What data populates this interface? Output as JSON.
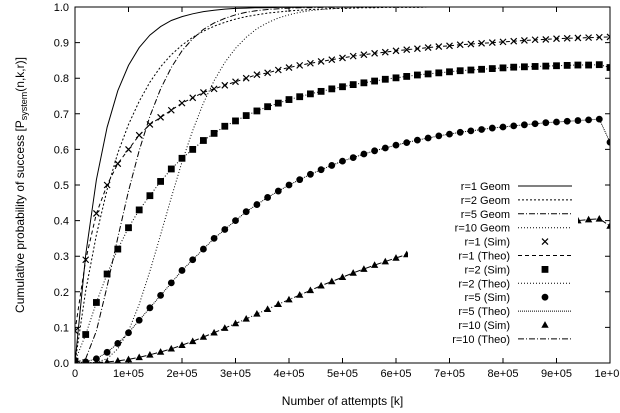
{
  "chart_data": {
    "type": "line",
    "xlabel": "Number of attempts [k]",
    "ylabel": {
      "main": "Cumulative probability of success [P",
      "sub": "system",
      "tail": "(n,k,r)]"
    },
    "xlim": [
      0,
      1000000
    ],
    "ylim": [
      0,
      1
    ],
    "xticks": [
      0,
      100000,
      200000,
      300000,
      400000,
      500000,
      600000,
      700000,
      800000,
      900000,
      1000000
    ],
    "xtick_labels": [
      "0",
      "1e+05",
      "2e+05",
      "3e+05",
      "4e+05",
      "5e+05",
      "6e+05",
      "7e+05",
      "8e+05",
      "9e+05",
      "1e+06"
    ],
    "yticks": [
      0,
      0.1,
      0.2,
      0.3,
      0.4,
      0.5,
      0.6,
      0.7,
      0.8,
      0.9,
      1.0
    ],
    "ytick_labels": [
      "0.0",
      "0.1",
      "0.2",
      "0.3",
      "0.4",
      "0.5",
      "0.6",
      "0.7",
      "0.8",
      "0.9",
      "1.0"
    ],
    "grid": false,
    "legend_position": "right",
    "x": [
      0,
      20000,
      40000,
      60000,
      80000,
      100000,
      120000,
      140000,
      160000,
      180000,
      200000,
      220000,
      240000,
      260000,
      280000,
      300000,
      320000,
      340000,
      360000,
      380000,
      400000,
      420000,
      440000,
      460000,
      480000,
      500000,
      520000,
      540000,
      560000,
      580000,
      600000,
      620000,
      640000,
      660000,
      680000,
      700000,
      720000,
      740000,
      760000,
      780000,
      800000,
      820000,
      840000,
      860000,
      880000,
      900000,
      920000,
      940000,
      960000,
      980000,
      1000000
    ],
    "series": [
      {
        "name": "r=1 Geom",
        "dash": "",
        "marker": "none",
        "values": [
          0,
          0.304,
          0.515,
          0.662,
          0.765,
          0.836,
          0.886,
          0.921,
          0.945,
          0.962,
          0.973,
          0.981,
          0.987,
          0.991,
          0.994,
          0.996,
          0.997,
          0.998,
          0.998,
          0.999,
          0.999,
          0.999,
          1,
          1,
          1,
          1,
          1,
          1,
          1,
          1,
          1,
          1,
          1,
          1,
          1,
          1,
          1,
          1,
          1,
          1,
          1,
          1,
          1,
          1,
          1,
          1,
          1,
          1,
          1,
          1,
          1
        ]
      },
      {
        "name": "r=2 Geom",
        "dash": "2,2",
        "marker": "none",
        "values": [
          0,
          0.203,
          0.36,
          0.487,
          0.59,
          0.67,
          0.735,
          0.789,
          0.832,
          0.866,
          0.893,
          0.915,
          0.932,
          0.946,
          0.957,
          0.966,
          0.973,
          0.978,
          0.983,
          0.986,
          0.989,
          0.991,
          0.993,
          0.994,
          0.996,
          0.996,
          0.997,
          0.998,
          0.998,
          0.999,
          0.999,
          0.999,
          0.999,
          1,
          1,
          1,
          1,
          1,
          1,
          1,
          1,
          1,
          1,
          1,
          1,
          1,
          1,
          1,
          1,
          1,
          1
        ]
      },
      {
        "name": "r=5 Geom",
        "dash": "6,2,1,2",
        "marker": "none",
        "values": [
          0,
          0.012,
          0.09,
          0.215,
          0.352,
          0.483,
          0.597,
          0.693,
          0.77,
          0.83,
          0.877,
          0.911,
          0.937,
          0.955,
          0.968,
          0.978,
          0.985,
          0.99,
          0.993,
          0.995,
          0.997,
          0.998,
          0.998,
          0.999,
          0.999,
          1,
          1,
          1,
          1,
          1,
          1,
          1,
          1,
          1,
          1,
          1,
          1,
          1,
          1,
          1,
          1,
          1,
          1,
          1,
          1,
          1,
          1,
          1,
          1,
          1,
          1
        ]
      },
      {
        "name": "r=10 Geom",
        "dash": "1,2",
        "marker": "none",
        "values": [
          0,
          0,
          0.002,
          0.012,
          0.04,
          0.09,
          0.165,
          0.258,
          0.36,
          0.465,
          0.565,
          0.653,
          0.73,
          0.793,
          0.844,
          0.884,
          0.915,
          0.939,
          0.956,
          0.969,
          0.978,
          0.985,
          0.99,
          0.993,
          0.995,
          0.997,
          0.998,
          0.999,
          0.999,
          1,
          1,
          1,
          1,
          1,
          1,
          1,
          1,
          1,
          1,
          1,
          1,
          1,
          1,
          1,
          1,
          1,
          1,
          1,
          1,
          1,
          1
        ]
      },
      {
        "name": "r=1 (Sim)",
        "dash": "none",
        "marker": "x",
        "values": [
          0.09,
          0.29,
          0.42,
          0.5,
          0.56,
          0.6,
          0.64,
          0.67,
          0.69,
          0.71,
          0.73,
          0.745,
          0.76,
          0.77,
          0.78,
          0.79,
          0.8,
          0.81,
          0.815,
          0.823,
          0.83,
          0.836,
          0.842,
          0.847,
          0.852,
          0.857,
          0.862,
          0.866,
          0.87,
          0.873,
          0.877,
          0.88,
          0.883,
          0.886,
          0.889,
          0.891,
          0.894,
          0.896,
          0.898,
          0.9,
          0.902,
          0.904,
          0.906,
          0.908,
          0.909,
          0.911,
          0.912,
          0.913,
          0.914,
          0.915,
          0.916
        ]
      },
      {
        "name": "r=1 (Theo)",
        "dash": "4,3",
        "marker": "none",
        "values": [
          0.09,
          0.29,
          0.42,
          0.5,
          0.56,
          0.6,
          0.64,
          0.67,
          0.69,
          0.71,
          0.73,
          0.745,
          0.76,
          0.77,
          0.78,
          0.79,
          0.8,
          0.81,
          0.815,
          0.823,
          0.83,
          0.836,
          0.842,
          0.847,
          0.852,
          0.857,
          0.862,
          0.866,
          0.87,
          0.873,
          0.877,
          0.88,
          0.883,
          0.886,
          0.889,
          0.891,
          0.894,
          0.896,
          0.898,
          0.9,
          0.902,
          0.904,
          0.906,
          0.908,
          0.909,
          0.911,
          0.912,
          0.913,
          0.914,
          0.915,
          0.916
        ]
      },
      {
        "name": "r=2 (Sim)",
        "dash": "none",
        "marker": "square",
        "values": [
          0.005,
          0.08,
          0.17,
          0.25,
          0.32,
          0.38,
          0.43,
          0.47,
          0.51,
          0.545,
          0.575,
          0.6,
          0.625,
          0.645,
          0.665,
          0.68,
          0.695,
          0.708,
          0.72,
          0.73,
          0.74,
          0.748,
          0.756,
          0.763,
          0.77,
          0.776,
          0.782,
          0.787,
          0.792,
          0.797,
          0.801,
          0.805,
          0.809,
          0.812,
          0.815,
          0.818,
          0.821,
          0.823,
          0.825,
          0.827,
          0.829,
          0.831,
          0.832,
          0.833,
          0.834,
          0.835,
          0.836,
          0.837,
          0.837,
          0.838,
          0.83
        ]
      },
      {
        "name": "r=2 (Theo)",
        "dash": "1,2",
        "marker": "none",
        "values": [
          0.005,
          0.08,
          0.17,
          0.25,
          0.32,
          0.38,
          0.43,
          0.47,
          0.51,
          0.545,
          0.575,
          0.6,
          0.625,
          0.645,
          0.665,
          0.68,
          0.695,
          0.708,
          0.72,
          0.73,
          0.74,
          0.748,
          0.756,
          0.763,
          0.77,
          0.776,
          0.782,
          0.787,
          0.792,
          0.797,
          0.801,
          0.805,
          0.809,
          0.812,
          0.815,
          0.818,
          0.821,
          0.823,
          0.825,
          0.827,
          0.829,
          0.831,
          0.832,
          0.833,
          0.834,
          0.835,
          0.836,
          0.837,
          0.837,
          0.838,
          0.83
        ]
      },
      {
        "name": "r=5 (Sim)",
        "dash": "none",
        "marker": "circle",
        "values": [
          0,
          0.003,
          0.012,
          0.03,
          0.055,
          0.085,
          0.12,
          0.155,
          0.19,
          0.225,
          0.26,
          0.29,
          0.32,
          0.35,
          0.375,
          0.4,
          0.425,
          0.445,
          0.465,
          0.483,
          0.5,
          0.515,
          0.53,
          0.543,
          0.555,
          0.567,
          0.577,
          0.587,
          0.596,
          0.604,
          0.612,
          0.619,
          0.626,
          0.632,
          0.638,
          0.643,
          0.648,
          0.652,
          0.656,
          0.66,
          0.663,
          0.666,
          0.669,
          0.672,
          0.675,
          0.677,
          0.679,
          0.681,
          0.683,
          0.685,
          0.62
        ]
      },
      {
        "name": "r=5 (Theo)",
        "dash": "1,1",
        "marker": "none",
        "values": [
          0,
          0.003,
          0.012,
          0.03,
          0.055,
          0.085,
          0.12,
          0.155,
          0.19,
          0.225,
          0.26,
          0.29,
          0.32,
          0.35,
          0.375,
          0.4,
          0.425,
          0.445,
          0.465,
          0.483,
          0.5,
          0.515,
          0.53,
          0.543,
          0.555,
          0.567,
          0.577,
          0.587,
          0.596,
          0.604,
          0.612,
          0.619,
          0.626,
          0.632,
          0.638,
          0.643,
          0.648,
          0.652,
          0.656,
          0.66,
          0.663,
          0.666,
          0.669,
          0.672,
          0.675,
          0.677,
          0.679,
          0.681,
          0.683,
          0.685,
          0.62
        ]
      },
      {
        "name": "r=10 (Sim)",
        "dash": "none",
        "marker": "triangle",
        "values": [
          0,
          0,
          0.001,
          0.003,
          0.006,
          0.01,
          0.016,
          0.023,
          0.031,
          0.04,
          0.05,
          0.061,
          0.073,
          0.085,
          0.098,
          0.111,
          0.124,
          0.138,
          0.151,
          0.165,
          0.178,
          0.191,
          0.204,
          0.217,
          0.229,
          0.241,
          0.253,
          0.264,
          0.275,
          0.285,
          0.295,
          0.305,
          0.314,
          0.322,
          0.331,
          0.338,
          0.346,
          0.353,
          0.359,
          0.365,
          0.371,
          0.376,
          0.381,
          0.386,
          0.39,
          0.394,
          0.397,
          0.4,
          0.403,
          0.405,
          0.385
        ]
      },
      {
        "name": "r=10 (Theo)",
        "dash": "6,2,1,2",
        "marker": "none",
        "values": [
          0,
          0,
          0.001,
          0.003,
          0.006,
          0.01,
          0.016,
          0.023,
          0.031,
          0.04,
          0.05,
          0.061,
          0.073,
          0.085,
          0.098,
          0.111,
          0.124,
          0.138,
          0.151,
          0.165,
          0.178,
          0.191,
          0.204,
          0.217,
          0.229,
          0.241,
          0.253,
          0.264,
          0.275,
          0.285,
          0.295,
          0.305,
          0.314,
          0.322,
          0.331,
          0.338,
          0.346,
          0.353,
          0.359,
          0.365,
          0.371,
          0.376,
          0.381,
          0.386,
          0.39,
          0.394,
          0.397,
          0.4,
          0.403,
          0.405,
          0.385
        ]
      }
    ]
  }
}
